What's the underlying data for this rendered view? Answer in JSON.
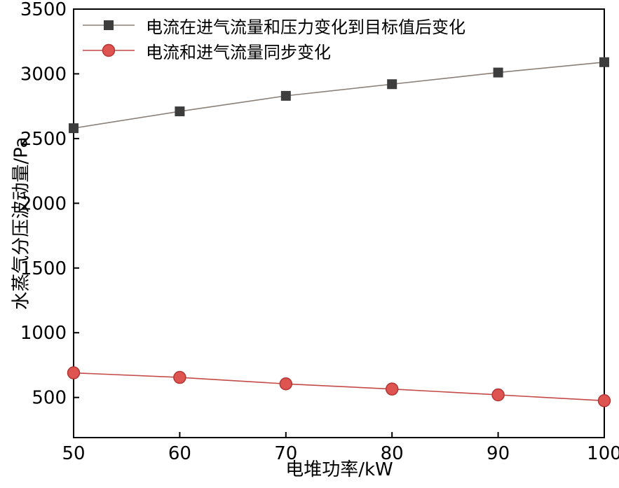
{
  "chart_data": {
    "type": "line",
    "title": "",
    "xlabel": "电堆功率/kW",
    "ylabel": "水蒸气分压波动量/Pa",
    "x": [
      50,
      60,
      70,
      80,
      90,
      100
    ],
    "x_ticks": [
      50,
      60,
      70,
      80,
      90,
      100
    ],
    "y_ticks": [
      500,
      1000,
      1500,
      2000,
      2500,
      3000,
      3500
    ],
    "xlim": [
      50,
      100
    ],
    "ylim": [
      190,
      3500
    ],
    "grid": false,
    "legend_position": "top-left-inside",
    "axis_color": "#000000",
    "series": [
      {
        "id": "current-after-target",
        "name": "电流在进气流量和压力变化到目标值后变化",
        "marker": "square",
        "marker_color": "#3d3d3d",
        "marker_edge": "#3d3d3d",
        "line_color": "#8a807a",
        "values": [
          2580,
          2710,
          2830,
          2920,
          3010,
          3090
        ]
      },
      {
        "id": "current-sync",
        "name": "电流和进气流量同步变化",
        "marker": "circle",
        "marker_color": "#dd5450",
        "marker_edge": "#b23734",
        "line_color": "#c44a47",
        "values": [
          690,
          655,
          605,
          565,
          520,
          475
        ]
      }
    ]
  }
}
